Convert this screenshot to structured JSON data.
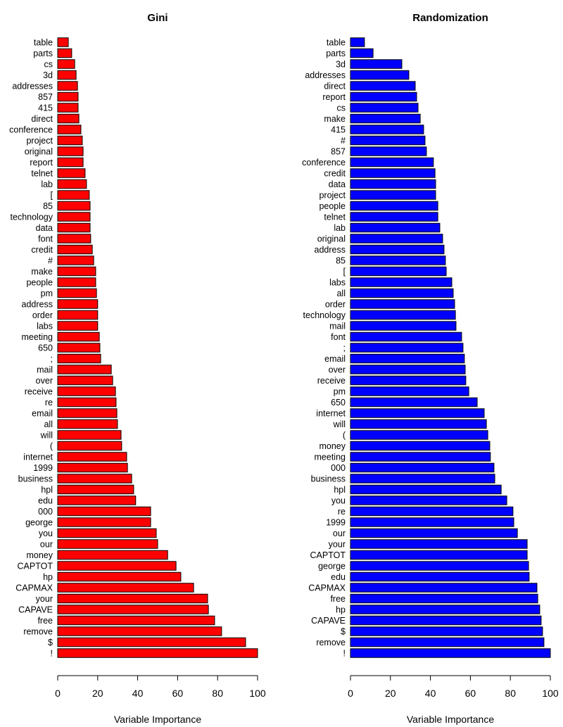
{
  "chart_data": [
    {
      "type": "bar",
      "orientation": "horizontal",
      "title": "Gini",
      "xlabel": "Variable Importance",
      "xlim": [
        0,
        100
      ],
      "xticks": [
        0,
        20,
        40,
        60,
        80,
        100
      ],
      "color": "#ff0000",
      "grid": false,
      "categories": [
        "table",
        "parts",
        "cs",
        "3d",
        "addresses",
        "857",
        "415",
        "direct",
        "conference",
        "project",
        "original",
        "report",
        "telnet",
        "lab",
        "[",
        "85",
        "technology",
        "data",
        "font",
        "credit",
        "#",
        "make",
        "people",
        "pm",
        "address",
        "order",
        "labs",
        "meeting",
        "650",
        ";",
        "mail",
        "over",
        "receive",
        "re",
        "email",
        "all",
        "will",
        "(",
        "internet",
        "1999",
        "business",
        "hpl",
        "edu",
        "000",
        "george",
        "you",
        "our",
        "money",
        "CAPTOT",
        "hp",
        "CAPMAX",
        "your",
        "CAPAVE",
        "free",
        "remove",
        "$",
        "!"
      ],
      "values": [
        5.3,
        7,
        8.5,
        9.2,
        9.9,
        10.2,
        10.2,
        10.6,
        11.6,
        12.3,
        12.7,
        12.7,
        13.7,
        14.4,
        15.8,
        16.2,
        16.2,
        16.2,
        16.5,
        17.3,
        18,
        19,
        19,
        19.4,
        20,
        20,
        20,
        20.8,
        21.1,
        21.5,
        26.8,
        27.5,
        28.9,
        29.2,
        29.6,
        29.9,
        31.7,
        32,
        34.5,
        34.9,
        37,
        38,
        39,
        46.5,
        46.5,
        49.3,
        50,
        55,
        59.2,
        61.6,
        68,
        75,
        75.4,
        78.5,
        82,
        94,
        100
      ]
    },
    {
      "type": "bar",
      "orientation": "horizontal",
      "title": "Randomization",
      "xlabel": "Variable Importance",
      "xlim": [
        0,
        100
      ],
      "xticks": [
        0,
        20,
        40,
        60,
        80,
        100
      ],
      "color": "#0000ff",
      "grid": false,
      "categories": [
        "table",
        "parts",
        "3d",
        "addresses",
        "direct",
        "report",
        "cs",
        "make",
        "415",
        "#",
        "857",
        "conference",
        "credit",
        "data",
        "project",
        "people",
        "telnet",
        "lab",
        "original",
        "address",
        "85",
        "[",
        "labs",
        "all",
        "order",
        "technology",
        "mail",
        "font",
        ";",
        "email",
        "over",
        "receive",
        "pm",
        "650",
        "internet",
        "will",
        "(",
        "money",
        "meeting",
        "000",
        "business",
        "hpl",
        "you",
        "re",
        "1999",
        "our",
        "your",
        "CAPTOT",
        "george",
        "edu",
        "CAPMAX",
        "free",
        "hp",
        "CAPAVE",
        "$",
        "remove",
        "!"
      ],
      "values": [
        7,
        11.3,
        25.7,
        29.2,
        32.4,
        33.1,
        33.8,
        34.9,
        36.6,
        37.3,
        38,
        41.5,
        42.3,
        42.6,
        42.6,
        43.7,
        43.7,
        44.7,
        46.1,
        46.8,
        47.5,
        47.9,
        50.7,
        51.4,
        52.1,
        52.5,
        52.8,
        55.6,
        56.3,
        57,
        57.4,
        57.7,
        59.2,
        63.4,
        66.9,
        68,
        68.7,
        69.7,
        70,
        71.8,
        72.2,
        75.4,
        78.2,
        81.3,
        81.7,
        83.5,
        88.4,
        88.4,
        89.1,
        89.4,
        93.3,
        93.7,
        94.7,
        95.4,
        96.1,
        96.8,
        100
      ]
    }
  ]
}
